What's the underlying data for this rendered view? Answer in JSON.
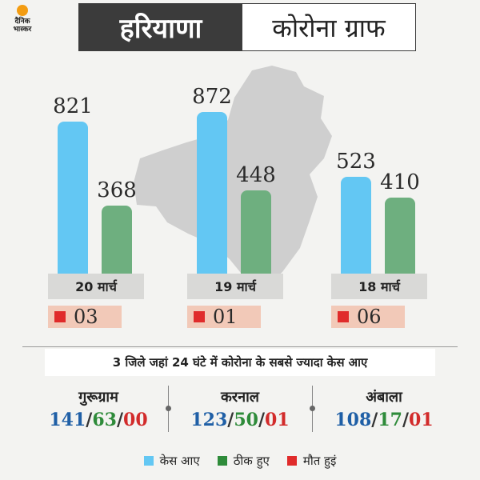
{
  "logo": {
    "line1": "दैनिक",
    "line2": "भास्कर"
  },
  "header": {
    "state": "हरियाणा",
    "title": "कोरोना ग्राफ"
  },
  "colors": {
    "cases": "#63c7f3",
    "recovered": "#6eaf7f",
    "deaths": "#e02b2b"
  },
  "chart_data": {
    "type": "bar",
    "categories": [
      "20 मार्च",
      "19 मार्च",
      "18 मार्च"
    ],
    "series": [
      {
        "name": "केस आए",
        "values": [
          821,
          872,
          523
        ]
      },
      {
        "name": "ठीक हुए",
        "values": [
          368,
          448,
          410
        ]
      }
    ],
    "deaths": [
      "03",
      "01",
      "06"
    ],
    "ylim": [
      0,
      1000
    ]
  },
  "section": {
    "subtitle": "3 जिले जहां 24 घंटे में कोरोना के सबसे ज्यादा केस आए"
  },
  "districts": [
    {
      "name": "गुरूग्राम",
      "cases": "141",
      "recovered": "63",
      "deaths": "00"
    },
    {
      "name": "करनाल",
      "cases": "123",
      "recovered": "50",
      "deaths": "01"
    },
    {
      "name": "अंबाला",
      "cases": "108",
      "recovered": "17",
      "deaths": "01"
    }
  ],
  "legend": {
    "cases": "केस आए",
    "recovered": "ठीक हुए",
    "deaths": "मौत हुइं"
  }
}
